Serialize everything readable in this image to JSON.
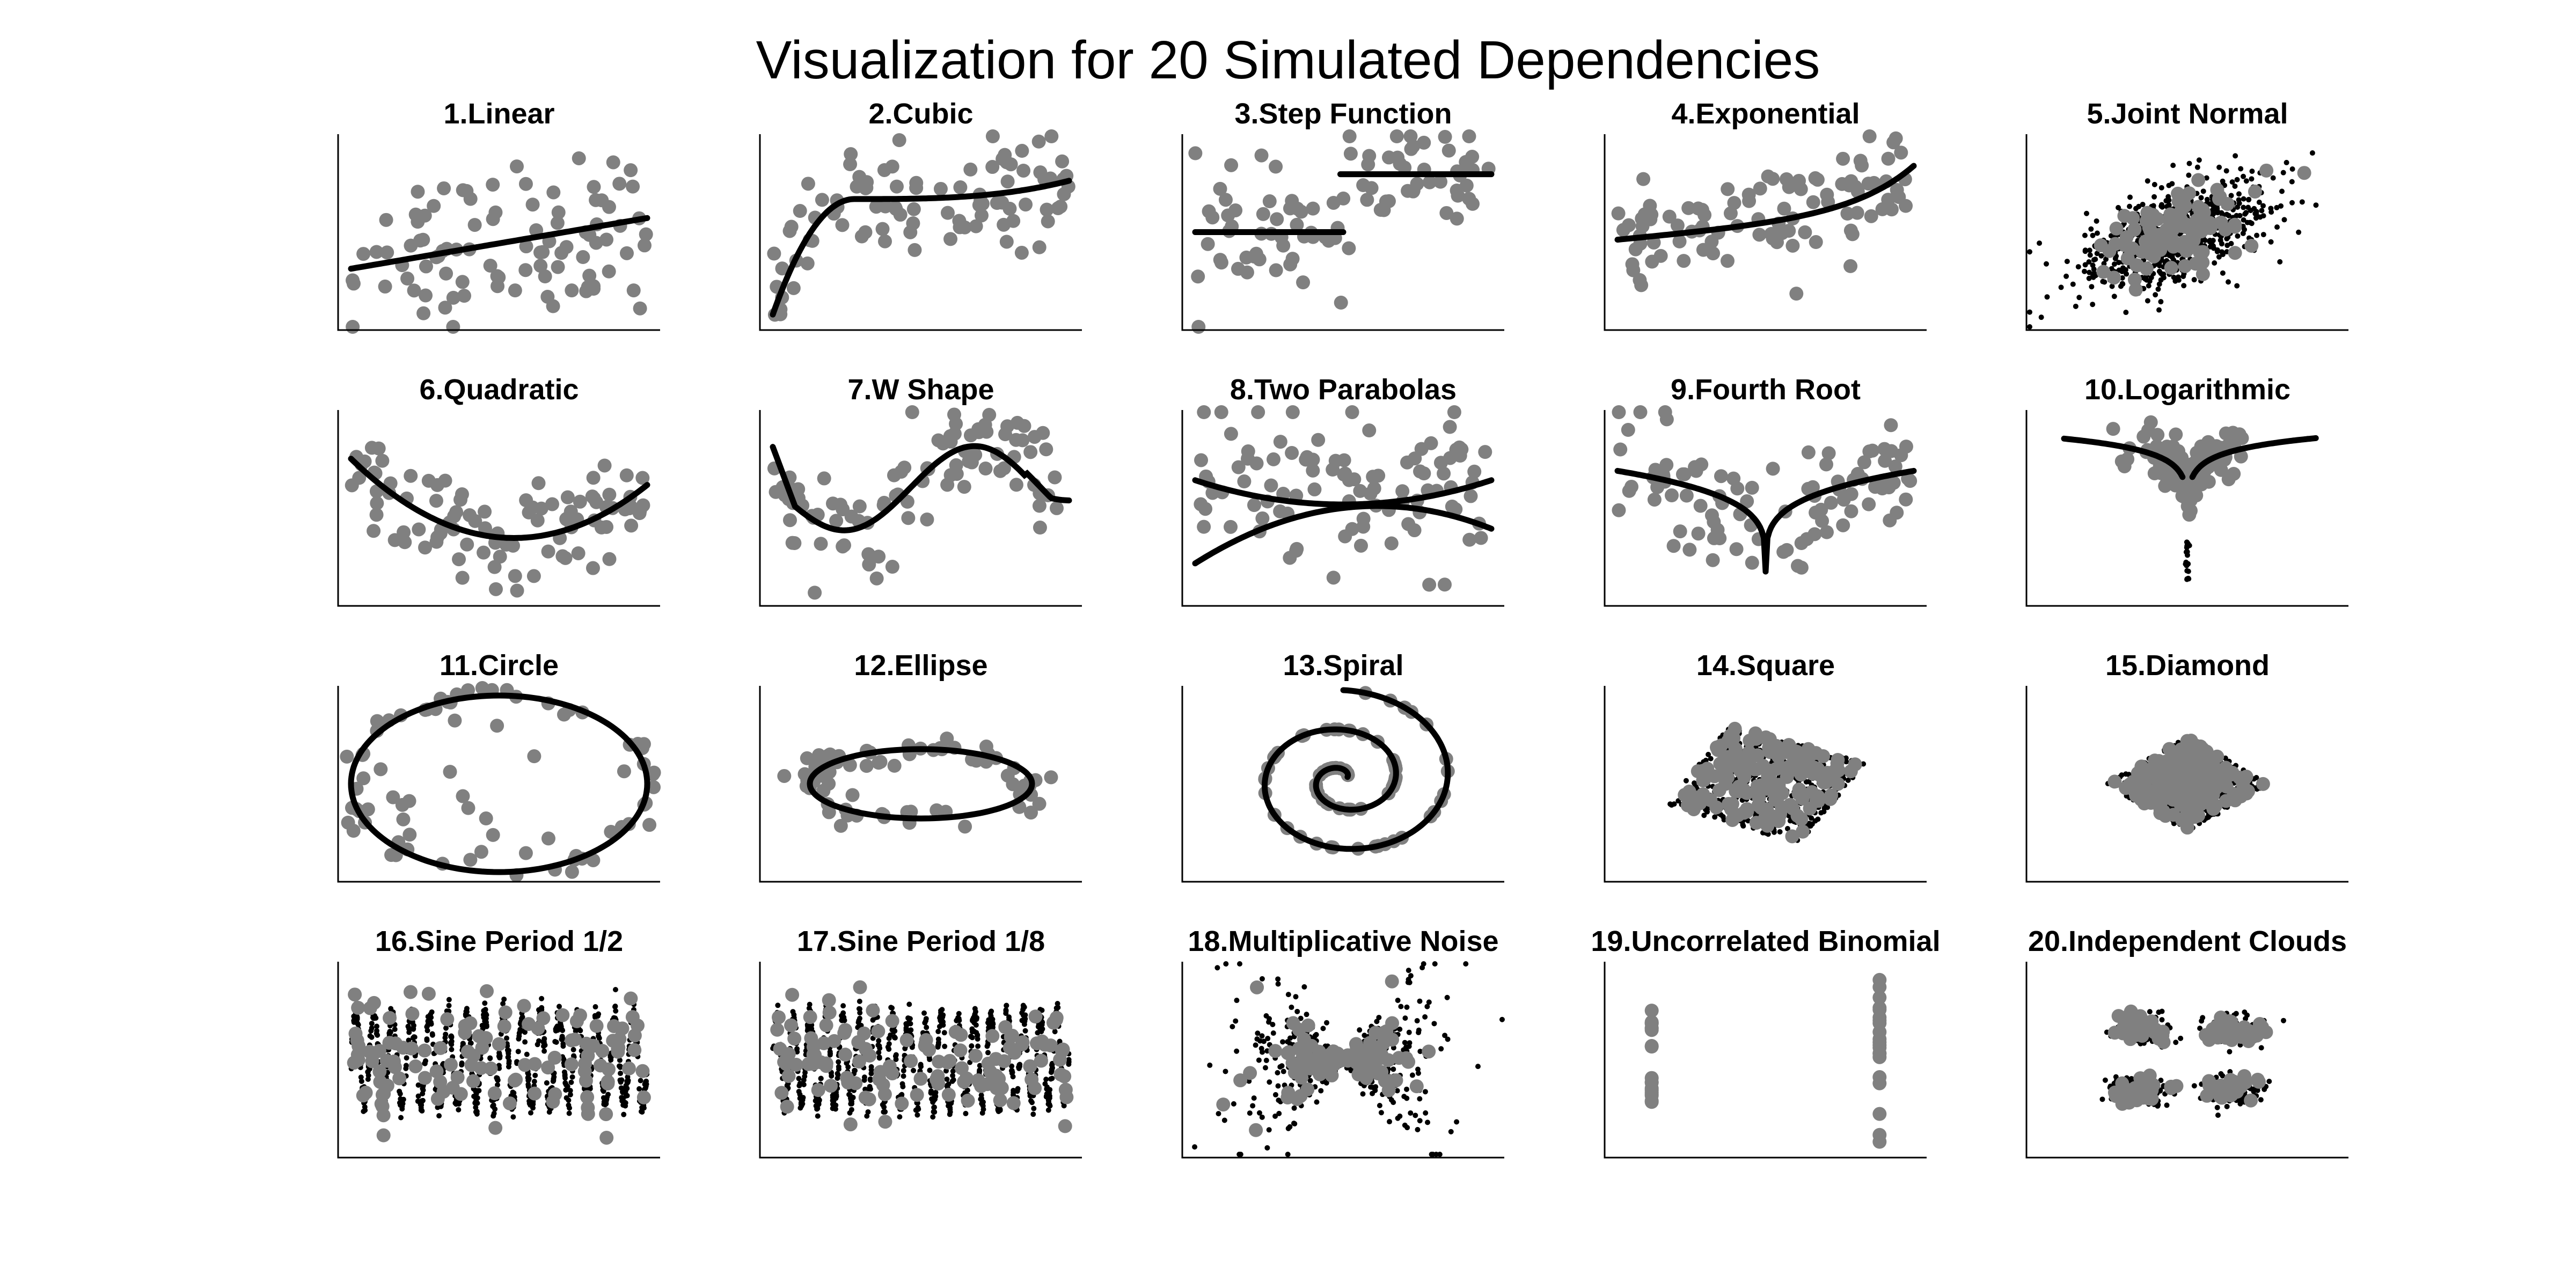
{
  "title": "Visualization for 20 Simulated Dependencies",
  "colors": {
    "scatter": "#808080",
    "curve": "#000000",
    "axis": "#000000"
  },
  "chart_data": [
    {
      "type": "scatter",
      "title": "1.Linear",
      "kind": "linear"
    },
    {
      "type": "scatter",
      "title": "2.Cubic",
      "kind": "cubic"
    },
    {
      "type": "scatter",
      "title": "3.Step Function",
      "kind": "step"
    },
    {
      "type": "scatter",
      "title": "4.Exponential",
      "kind": "exponential"
    },
    {
      "type": "scatter",
      "title": "5.Joint Normal",
      "kind": "jointnormal"
    },
    {
      "type": "scatter",
      "title": "6.Quadratic",
      "kind": "quadratic"
    },
    {
      "type": "scatter",
      "title": "7.W Shape",
      "kind": "wshape"
    },
    {
      "type": "scatter",
      "title": "8.Two Parabolas",
      "kind": "twoparabolas"
    },
    {
      "type": "scatter",
      "title": "9.Fourth Root",
      "kind": "fourthroot"
    },
    {
      "type": "scatter",
      "title": "10.Logarithmic",
      "kind": "logarithmic"
    },
    {
      "type": "scatter",
      "title": "11.Circle",
      "kind": "circle"
    },
    {
      "type": "scatter",
      "title": "12.Ellipse",
      "kind": "ellipse"
    },
    {
      "type": "scatter",
      "title": "13.Spiral",
      "kind": "spiral"
    },
    {
      "type": "scatter",
      "title": "14.Square",
      "kind": "square"
    },
    {
      "type": "scatter",
      "title": "15.Diamond",
      "kind": "diamond"
    },
    {
      "type": "scatter",
      "title": "16.Sine Period 1/2",
      "kind": "sine2"
    },
    {
      "type": "scatter",
      "title": "17.Sine Period 1/8",
      "kind": "sine8"
    },
    {
      "type": "scatter",
      "title": "18.Multiplicative Noise",
      "kind": "multnoise"
    },
    {
      "type": "scatter",
      "title": "19.Uncorrelated Binomial",
      "kind": "binomial"
    },
    {
      "type": "scatter",
      "title": "20.Independent Clouds",
      "kind": "clouds"
    }
  ]
}
